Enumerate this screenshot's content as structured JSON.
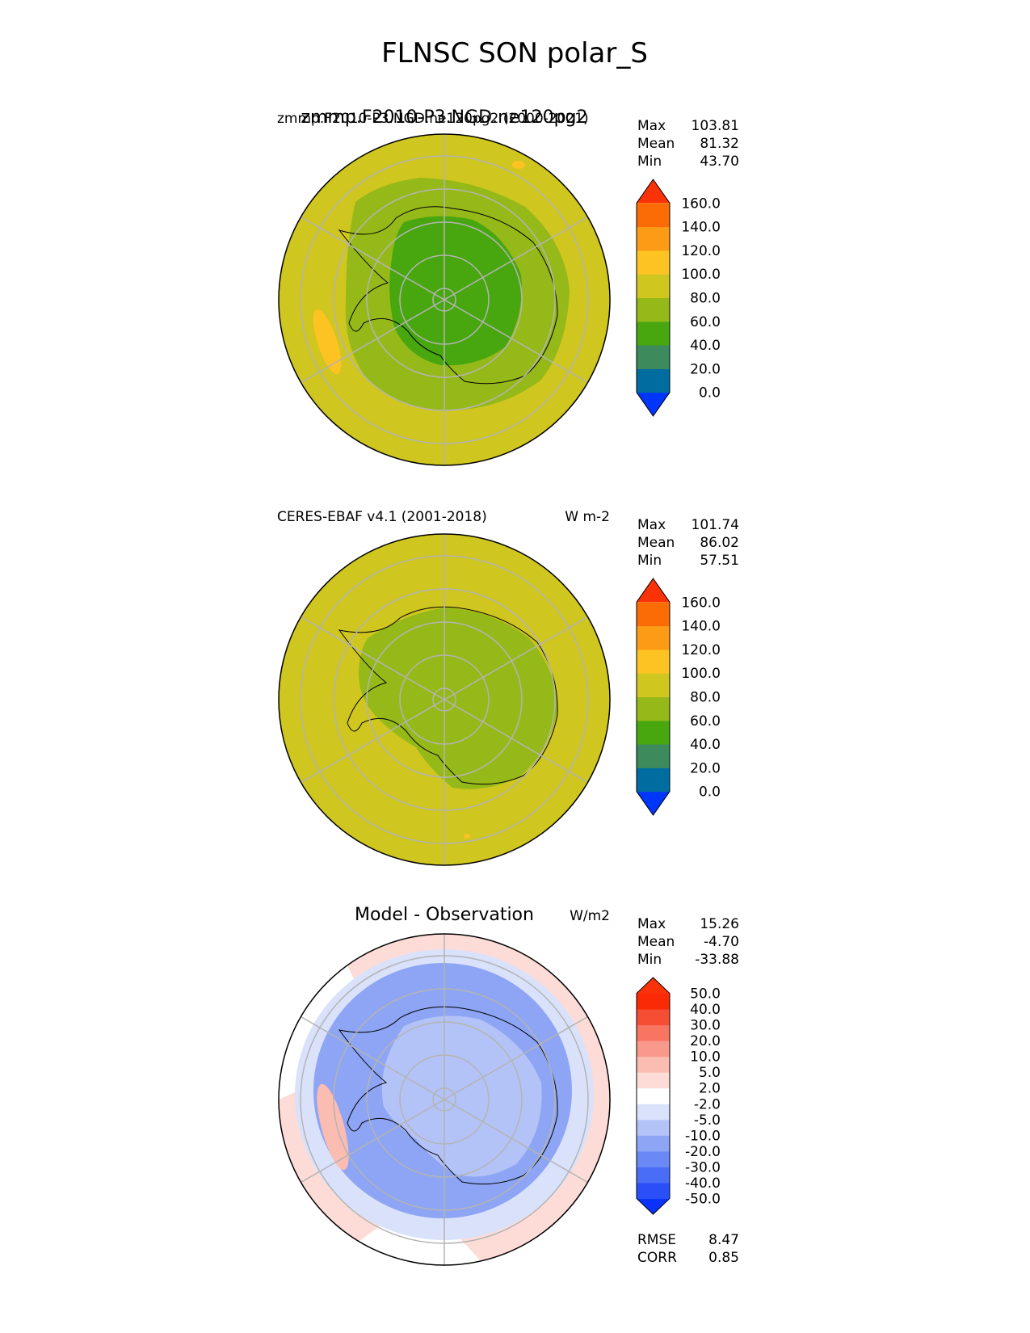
{
  "figure": {
    "title": "FLNSC SON polar_S"
  },
  "chart_data": [
    {
      "type": "heatmap",
      "panel": "test",
      "title_left": "zmmp.F2010-P3.NGD.ne120pg2 (2000-2021)",
      "title_center": "zmmp.F2010-P3.NGD.ne120pg2",
      "units": "",
      "stats": [
        {
          "label": "Max",
          "value": "103.81"
        },
        {
          "label": "Mean",
          "value": "81.32"
        },
        {
          "label": "Min",
          "value": "43.70"
        }
      ],
      "colorbar": {
        "levels": [
          0,
          20,
          40,
          60,
          80,
          100,
          120,
          140,
          160
        ],
        "tick_labels": [
          "160.0",
          "140.0",
          "120.0",
          "100.0",
          "80.0",
          "60.0",
          "40.0",
          "20.0",
          "0.0"
        ],
        "colors": [
          "#0036fb",
          "#006da0",
          "#3d8a5c",
          "#48a60f",
          "#95b918",
          "#cfc620",
          "#fcc323",
          "#fb9b16",
          "#fb6c06",
          "#fa3207"
        ],
        "extend": "both"
      },
      "field_colors": {
        "ocean": "#cfc620",
        "coast": "#95b918",
        "interior": "#48a60f",
        "warm_patch": "#fcc323"
      }
    },
    {
      "type": "heatmap",
      "panel": "reference",
      "title_left": "CERES-EBAF v4.1 (2001-2018)",
      "units": "W m-2",
      "stats": [
        {
          "label": "Max",
          "value": "101.74"
        },
        {
          "label": "Mean",
          "value": "86.02"
        },
        {
          "label": "Min",
          "value": "57.51"
        }
      ],
      "colorbar": {
        "levels": [
          0,
          20,
          40,
          60,
          80,
          100,
          120,
          140,
          160
        ],
        "tick_labels": [
          "160.0",
          "140.0",
          "120.0",
          "100.0",
          "80.0",
          "60.0",
          "40.0",
          "20.0",
          "0.0"
        ],
        "colors": [
          "#0036fb",
          "#006da0",
          "#3d8a5c",
          "#48a60f",
          "#95b918",
          "#cfc620",
          "#fcc323",
          "#fb9b16",
          "#fb6c06",
          "#fa3207"
        ],
        "extend": "both"
      },
      "field_colors": {
        "ocean": "#cfc620",
        "coast": "#95b918",
        "interior": "#95b918",
        "warm_patch": "#fcc323"
      }
    },
    {
      "type": "heatmap",
      "panel": "diff",
      "title_center": "Model - Observation",
      "units": "W/m2",
      "stats": [
        {
          "label": "Max",
          "value": "15.26"
        },
        {
          "label": "Mean",
          "value": "-4.70"
        },
        {
          "label": "Min",
          "value": "-33.88"
        }
      ],
      "metrics": [
        {
          "label": "RMSE",
          "value": "8.47"
        },
        {
          "label": "CORR",
          "value": "0.85"
        }
      ],
      "colorbar": {
        "levels": [
          -50,
          -40,
          -30,
          -20,
          -10,
          -5,
          -2,
          2,
          5,
          10,
          20,
          30,
          40,
          50
        ],
        "tick_labels": [
          "50.0",
          "40.0",
          "30.0",
          "20.0",
          "10.0",
          "5.0",
          "2.0",
          "-2.0",
          "-5.0",
          "-10.0",
          "-20.0",
          "-30.0",
          "-40.0",
          "-50.0"
        ],
        "colors": [
          "#0b32fb",
          "#2a4ff9",
          "#4a6df7",
          "#6b89f5",
          "#8da5f4",
          "#b3c3f7",
          "#d9e1fb",
          "#ffffff",
          "#fddcd7",
          "#fbbcb2",
          "#f9998b",
          "#f87562",
          "#f64e35",
          "#fb2a06",
          "#fa3207"
        ],
        "extend": "both"
      },
      "field_colors": {
        "ocean": "#d9e1fb",
        "coast": "#8da5f4",
        "interior": "#b3c3f7",
        "warm_patch": "#fbbcb2",
        "outer_ring": "#fddcd7"
      }
    }
  ]
}
